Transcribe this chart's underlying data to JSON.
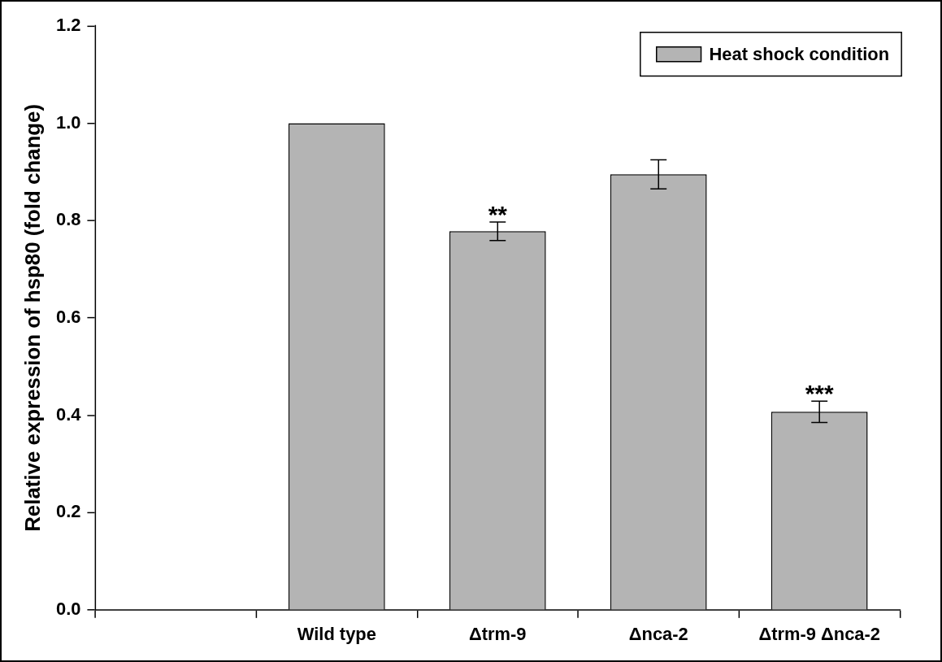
{
  "chart_data": {
    "type": "bar",
    "ylabel": "Relative expression of hsp80 (fold change)",
    "categories": [
      null,
      "Wild type",
      "Δtrm-9",
      "Δnca-2",
      "Δtrm-9 Δnca-2"
    ],
    "series": [
      {
        "name": "Heat shock condition",
        "color": "#b4b4b4",
        "values": [
          null,
          1.0,
          0.778,
          0.895,
          0.407
        ],
        "errors": [
          null,
          null,
          0.019,
          0.03,
          0.022
        ]
      }
    ],
    "ylim": [
      0,
      1.2
    ],
    "yticks": [
      {
        "value": 0,
        "label": "0.0"
      },
      {
        "value": 0.2,
        "label": "0.2"
      },
      {
        "value": 0.4,
        "label": "0.4"
      },
      {
        "value": 0.6,
        "label": "0.6"
      },
      {
        "value": 0.8,
        "label": "0.8"
      },
      {
        "value": 1,
        "label": "1.0"
      },
      {
        "value": 1.2,
        "label": "1.2"
      }
    ],
    "annotations": [
      {
        "text": "**",
        "x": "Δtrm-9",
        "y": 0.797
      },
      {
        "text": "***",
        "x": "Δtrm-9 Δnca-2",
        "y": 0.429
      }
    ],
    "grid": false,
    "legend": "top right"
  }
}
